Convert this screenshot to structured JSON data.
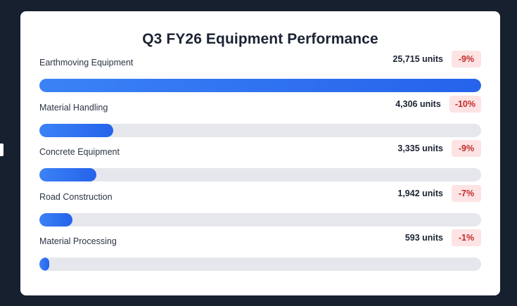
{
  "chart_data": {
    "type": "bar",
    "orientation": "horizontal",
    "title": "Q3 FY26 Equipment Performance",
    "categories": [
      "Earthmoving Equipment",
      "Material Handling",
      "Concrete Equipment",
      "Road Construction",
      "Material Processing"
    ],
    "values": [
      25715,
      4306,
      3335,
      1942,
      593
    ],
    "value_labels": [
      "25,715 units",
      "4,306 units",
      "3,335 units",
      "1,942 units",
      "593 units"
    ],
    "changes": [
      "-9%",
      "-10%",
      "-9%",
      "-7%",
      "-1%"
    ],
    "xlim": [
      0,
      25715
    ],
    "grid": false,
    "legend": "none"
  },
  "colors": {
    "bar_start": "#3b82f6",
    "bar_end": "#2563eb",
    "track": "#e6e7ec",
    "badge_bg": "#fde3e3",
    "badge_text": "#c32a2a"
  }
}
